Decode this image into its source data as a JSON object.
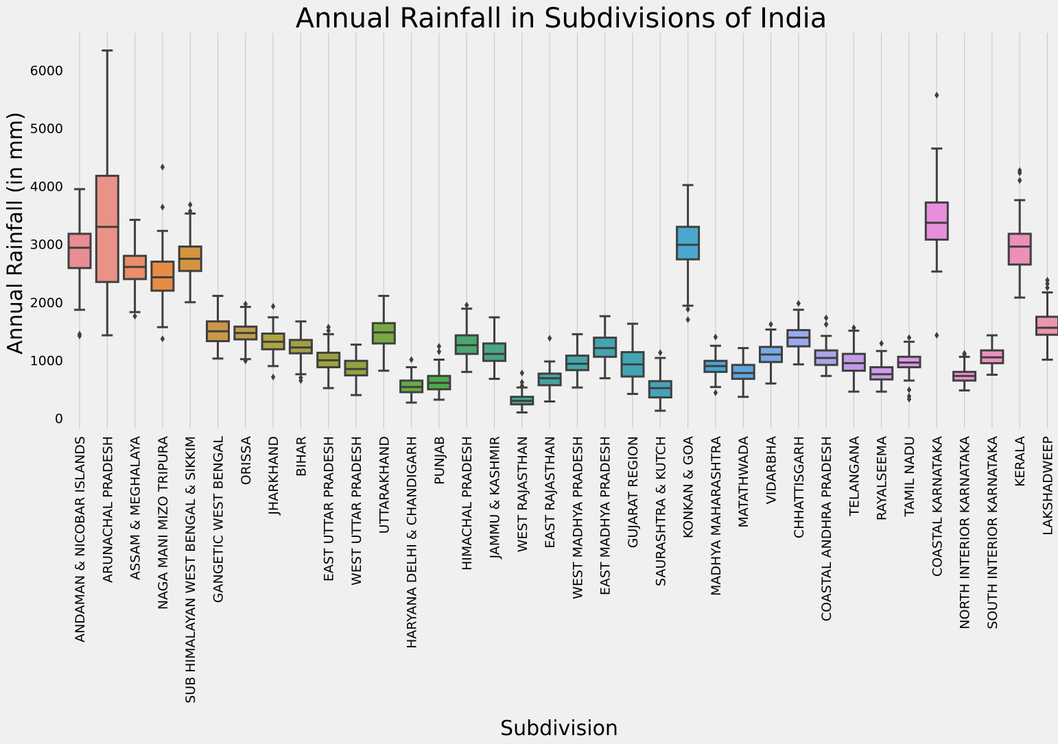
{
  "chart_data": {
    "type": "box",
    "title": "Annual Rainfall in Subdivisions of India",
    "xlabel": "Subdivision",
    "ylabel": "Annual Rainfall (in mm)",
    "ylim": [
      -180,
      6650
    ],
    "yticks": [
      0,
      1000,
      2000,
      3000,
      4000,
      5000,
      6000
    ],
    "grid": "vertical",
    "categories": [
      "ANDAMAN & NICOBAR ISLANDS",
      "ARUNACHAL PRADESH",
      "ASSAM & MEGHALAYA",
      "NAGA MANI MIZO TRIPURA",
      "SUB HIMALAYAN WEST BENGAL & SIKKIM",
      "GANGETIC WEST BENGAL",
      "ORISSA",
      "JHARKHAND",
      "BIHAR",
      "EAST UTTAR PRADESH",
      "WEST UTTAR PRADESH",
      "UTTARAKHAND",
      "HARYANA DELHI & CHANDIGARH",
      "PUNJAB",
      "HIMACHAL PRADESH",
      "JAMMU & KASHMIR",
      "WEST RAJASTHAN",
      "EAST RAJASTHAN",
      "WEST MADHYA PRADESH",
      "EAST MADHYA PRADESH",
      "GUJARAT REGION",
      "SAURASHTRA & KUTCH",
      "KONKAN & GOA",
      "MADHYA MAHARASHTRA",
      "MATATHWADA",
      "VIDARBHA",
      "CHHATTISGARH",
      "COASTAL ANDHRA PRADESH",
      "TELANGANA",
      "RAYALSEEMA",
      "TAMIL NADU",
      "COASTAL KARNATAKA",
      "NORTH INTERIOR KARNATAKA",
      "SOUTH INTERIOR KARNATAKA",
      "KERALA",
      "LAKSHADWEEP"
    ],
    "boxes": [
      {
        "whislo": 1870,
        "q1": 2590,
        "med": 2940,
        "q3": 3180,
        "whishi": 3950,
        "fliers": [
          1420,
          1450
        ],
        "color": "#e98d94"
      },
      {
        "whislo": 1430,
        "q1": 2350,
        "med": 3300,
        "q3": 4180,
        "whishi": 6340,
        "fliers": [],
        "color": "#ea9288"
      },
      {
        "whislo": 1830,
        "q1": 2400,
        "med": 2610,
        "q3": 2800,
        "whishi": 3420,
        "fliers": [
          1760
        ],
        "color": "#e98f6a"
      },
      {
        "whislo": 1570,
        "q1": 2200,
        "med": 2430,
        "q3": 2700,
        "whishi": 3230,
        "fliers": [
          1370,
          3640,
          4330
        ],
        "color": "#e68c45"
      },
      {
        "whislo": 2000,
        "q1": 2540,
        "med": 2750,
        "q3": 2960,
        "whishi": 3530,
        "fliers": [
          3570,
          3680
        ],
        "color": "#d3953f"
      },
      {
        "whislo": 1030,
        "q1": 1330,
        "med": 1500,
        "q3": 1670,
        "whishi": 2110,
        "fliers": [],
        "color": "#c9974a"
      },
      {
        "whislo": 1020,
        "q1": 1360,
        "med": 1470,
        "q3": 1580,
        "whishi": 1920,
        "fliers": [
          990,
          1970
        ],
        "color": "#bf9b4a"
      },
      {
        "whislo": 900,
        "q1": 1190,
        "med": 1320,
        "q3": 1460,
        "whishi": 1740,
        "fliers": [
          710,
          1930
        ],
        "color": "#ada442"
      },
      {
        "whislo": 760,
        "q1": 1120,
        "med": 1220,
        "q3": 1350,
        "whishi": 1670,
        "fliers": [
          650,
          700
        ],
        "color": "#a3a042"
      },
      {
        "whislo": 520,
        "q1": 880,
        "med": 1000,
        "q3": 1130,
        "whishi": 1450,
        "fliers": [
          1510,
          1570
        ],
        "color": "#9ea03f"
      },
      {
        "whislo": 400,
        "q1": 740,
        "med": 850,
        "q3": 990,
        "whishi": 1270,
        "fliers": [],
        "color": "#93a43f"
      },
      {
        "whislo": 820,
        "q1": 1290,
        "med": 1480,
        "q3": 1640,
        "whishi": 2110,
        "fliers": [],
        "color": "#79a841"
      },
      {
        "whislo": 270,
        "q1": 450,
        "med": 540,
        "q3": 650,
        "whishi": 880,
        "fliers": [
          1010
        ],
        "color": "#64ab45"
      },
      {
        "whislo": 320,
        "q1": 500,
        "med": 610,
        "q3": 730,
        "whishi": 1010,
        "fliers": [
          1150,
          1240
        ],
        "color": "#4ea94c"
      },
      {
        "whislo": 800,
        "q1": 1110,
        "med": 1260,
        "q3": 1430,
        "whishi": 1890,
        "fliers": [
          1950
        ],
        "color": "#4aa86e"
      },
      {
        "whislo": 680,
        "q1": 990,
        "med": 1110,
        "q3": 1290,
        "whishi": 1740,
        "fliers": [],
        "color": "#4aa683"
      },
      {
        "whislo": 100,
        "q1": 240,
        "med": 300,
        "q3": 370,
        "whishi": 530,
        "fliers": [
          560,
          620,
          780
        ],
        "color": "#46a695"
      },
      {
        "whislo": 290,
        "q1": 570,
        "med": 690,
        "q3": 770,
        "whishi": 980,
        "fliers": [
          1380
        ],
        "color": "#44a49d"
      },
      {
        "whislo": 530,
        "q1": 830,
        "med": 940,
        "q3": 1080,
        "whishi": 1450,
        "fliers": [],
        "color": "#45a6a8"
      },
      {
        "whislo": 690,
        "q1": 1060,
        "med": 1210,
        "q3": 1390,
        "whishi": 1760,
        "fliers": [],
        "color": "#45a3ae"
      },
      {
        "whislo": 420,
        "q1": 720,
        "med": 930,
        "q3": 1140,
        "whishi": 1630,
        "fliers": [],
        "color": "#43a5b4"
      },
      {
        "whislo": 130,
        "q1": 360,
        "med": 520,
        "q3": 640,
        "whishi": 1040,
        "fliers": [
          1130
        ],
        "color": "#45a4ba"
      },
      {
        "whislo": 1940,
        "q1": 2740,
        "med": 2990,
        "q3": 3300,
        "whishi": 4020,
        "fliers": [
          1700,
          1880
        ],
        "color": "#49a9cd"
      },
      {
        "whislo": 540,
        "q1": 800,
        "med": 900,
        "q3": 990,
        "whishi": 1250,
        "fliers": [
          440,
          1400
        ],
        "color": "#4aa4d4"
      },
      {
        "whislo": 370,
        "q1": 680,
        "med": 780,
        "q3": 920,
        "whishi": 1210,
        "fliers": [],
        "color": "#60a4dc"
      },
      {
        "whislo": 600,
        "q1": 970,
        "med": 1100,
        "q3": 1230,
        "whishi": 1530,
        "fliers": [
          1620
        ],
        "color": "#7aa8e6"
      },
      {
        "whislo": 930,
        "q1": 1240,
        "med": 1390,
        "q3": 1520,
        "whishi": 1870,
        "fliers": [
          1980
        ],
        "color": "#9aa9ec"
      },
      {
        "whislo": 730,
        "q1": 920,
        "med": 1040,
        "q3": 1170,
        "whishi": 1420,
        "fliers": [
          1620,
          1730
        ],
        "color": "#a8a6e8"
      },
      {
        "whislo": 460,
        "q1": 820,
        "med": 950,
        "q3": 1110,
        "whishi": 1510,
        "fliers": [
          1560
        ],
        "color": "#c09be8"
      },
      {
        "whislo": 460,
        "q1": 670,
        "med": 760,
        "q3": 880,
        "whishi": 1160,
        "fliers": [
          1290
        ],
        "color": "#cf9ce8"
      },
      {
        "whislo": 650,
        "q1": 880,
        "med": 960,
        "q3": 1060,
        "whishi": 1320,
        "fliers": [
          330,
          380,
          490,
          1390
        ],
        "color": "#d99be2"
      },
      {
        "whislo": 2530,
        "q1": 3080,
        "med": 3370,
        "q3": 3720,
        "whishi": 4650,
        "fliers": [
          1430,
          5570
        ],
        "color": "#e78fdd"
      },
      {
        "whislo": 480,
        "q1": 650,
        "med": 730,
        "q3": 800,
        "whishi": 1060,
        "fliers": [
          1100,
          1120
        ],
        "color": "#ea93cf"
      },
      {
        "whislo": 750,
        "q1": 950,
        "med": 1050,
        "q3": 1170,
        "whishi": 1430,
        "fliers": [],
        "color": "#ea92c3"
      },
      {
        "whislo": 2080,
        "q1": 2650,
        "med": 2960,
        "q3": 3180,
        "whishi": 3760,
        "fliers": [
          4100,
          4230,
          4270
        ],
        "color": "#ec90b8"
      },
      {
        "whislo": 1010,
        "q1": 1440,
        "med": 1560,
        "q3": 1750,
        "whishi": 2170,
        "fliers": [
          2250,
          2320,
          2380
        ],
        "color": "#ea96ab"
      }
    ]
  }
}
